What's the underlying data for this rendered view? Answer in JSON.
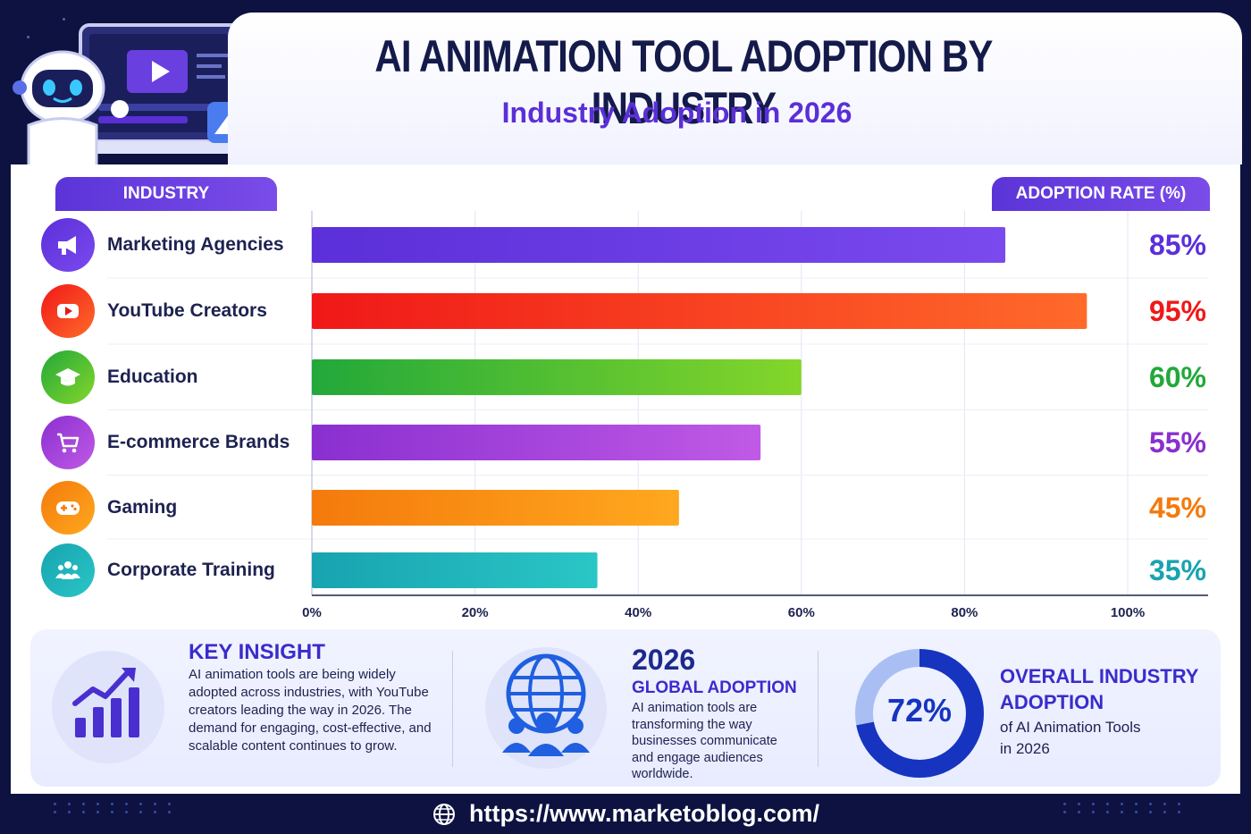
{
  "header": {
    "title": "AI ANIMATION TOOL ADOPTION BY INDUSTRY",
    "subtitle": "Industry Adoption in 2026"
  },
  "columns": {
    "industry": "INDUSTRY",
    "rate": "ADOPTION RATE (%)"
  },
  "chart_data": {
    "type": "bar",
    "orientation": "horizontal",
    "title": "AI ANIMATION TOOL ADOPTION BY INDUSTRY",
    "subtitle": "Industry Adoption in 2026",
    "categories": [
      "Marketing Agencies",
      "YouTube Creators",
      "Education",
      "E-commerce Brands",
      "Gaming",
      "Corporate Training"
    ],
    "values": [
      85,
      95,
      60,
      55,
      45,
      35
    ],
    "value_labels": [
      "85%",
      "95%",
      "60%",
      "55%",
      "45%",
      "35%"
    ],
    "xlim": [
      0,
      100
    ],
    "x_ticks": [
      "0%",
      "20%",
      "40%",
      "60%",
      "80%",
      "100%"
    ],
    "grid": true,
    "colors": [
      "#5b2fd9",
      "#f01818",
      "#22a83a",
      "#8a2fd0",
      "#f47a0c",
      "#18a3b0"
    ],
    "gradient_end_colors": [
      "#7a4aee",
      "#ff6a2a",
      "#84d62a",
      "#c05ae6",
      "#ffa81e",
      "#2ac6c6"
    ],
    "icons": [
      "megaphone-icon",
      "youtube-play-icon",
      "graduation-cap-icon",
      "shopping-cart-icon",
      "gamepad-icon",
      "team-icon"
    ]
  },
  "insights": {
    "key": {
      "title": "KEY INSIGHT",
      "text": "AI animation tools are being widely adopted across industries, with YouTube creators leading the way in 2026. The demand for engaging, cost-effective, and scalable content continues to grow."
    },
    "global": {
      "year": "2026",
      "title": "GLOBAL ADOPTION",
      "text": "AI animation tools are transforming the way businesses communicate and engage audiences worldwide."
    },
    "overall": {
      "value": 72,
      "value_label": "72%",
      "title_line1": "OVERALL INDUSTRY",
      "title_line2": "ADOPTION",
      "text_line1": "of AI Animation Tools",
      "text_line2": "in 2026"
    }
  },
  "footer": {
    "url": "https://www.marketoblog.com/"
  }
}
